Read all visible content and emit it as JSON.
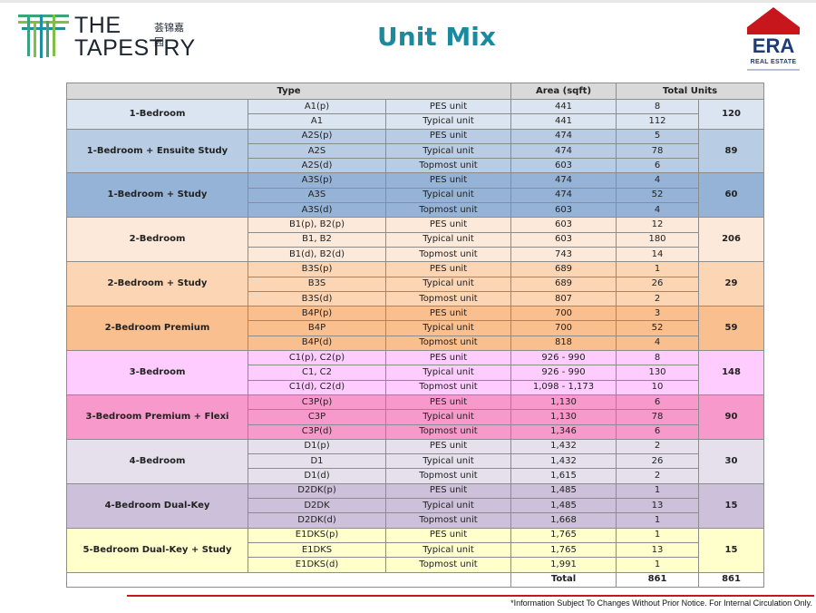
{
  "brand": {
    "line1": "THE",
    "line2": "TAPESTRY",
    "chinese": "荟锦嘉园"
  },
  "title": "Unit Mix",
  "era": {
    "name": "ERA",
    "sub": "REAL ESTATE",
    "accent": "#c8161d",
    "navy": "#1d3c78"
  },
  "table": {
    "headers": {
      "type": "Type",
      "area": "Area (sqft)",
      "units": "Total Units"
    },
    "groups": [
      {
        "name": "1-Bedroom",
        "total": "120",
        "color": "#dbe5f1",
        "rows": [
          {
            "code": "A1(p)",
            "kind": "PES unit",
            "area": "441",
            "units": "8"
          },
          {
            "code": "A1",
            "kind": "Typical unit",
            "area": "441",
            "units": "112"
          }
        ]
      },
      {
        "name": "1-Bedroom + Ensuite Study",
        "total": "89",
        "color": "#b8cce4",
        "rows": [
          {
            "code": "A2S(p)",
            "kind": "PES unit",
            "area": "474",
            "units": "5"
          },
          {
            "code": "A2S",
            "kind": "Typical unit",
            "area": "474",
            "units": "78"
          },
          {
            "code": "A2S(d)",
            "kind": "Topmost unit",
            "area": "603",
            "units": "6"
          }
        ]
      },
      {
        "name": "1-Bedroom + Study",
        "total": "60",
        "color": "#95b3d7",
        "rows": [
          {
            "code": "A3S(p)",
            "kind": "PES unit",
            "area": "474",
            "units": "4"
          },
          {
            "code": "A3S",
            "kind": "Typical unit",
            "area": "474",
            "units": "52"
          },
          {
            "code": "A3S(d)",
            "kind": "Topmost unit",
            "area": "603",
            "units": "4"
          }
        ]
      },
      {
        "name": "2-Bedroom",
        "total": "206",
        "color": "#fde9d9",
        "rows": [
          {
            "code": "B1(p), B2(p)",
            "kind": "PES unit",
            "area": "603",
            "units": "12"
          },
          {
            "code": "B1, B2",
            "kind": "Typical unit",
            "area": "603",
            "units": "180"
          },
          {
            "code": "B1(d), B2(d)",
            "kind": "Topmost unit",
            "area": "743",
            "units": "14"
          }
        ]
      },
      {
        "name": "2-Bedroom + Study",
        "total": "29",
        "color": "#fcd5b4",
        "rows": [
          {
            "code": "B3S(p)",
            "kind": "PES unit",
            "area": "689",
            "units": "1"
          },
          {
            "code": "B3S",
            "kind": "Typical unit",
            "area": "689",
            "units": "26"
          },
          {
            "code": "B3S(d)",
            "kind": "Topmost unit",
            "area": "807",
            "units": "2"
          }
        ]
      },
      {
        "name": "2-Bedroom Premium",
        "total": "59",
        "color": "#fabf8f",
        "rows": [
          {
            "code": "B4P(p)",
            "kind": "PES unit",
            "area": "700",
            "units": "3"
          },
          {
            "code": "B4P",
            "kind": "Typical unit",
            "area": "700",
            "units": "52"
          },
          {
            "code": "B4P(d)",
            "kind": "Topmost unit",
            "area": "818",
            "units": "4"
          }
        ]
      },
      {
        "name": "3-Bedroom",
        "total": "148",
        "color": "#ffccff",
        "rows": [
          {
            "code": "C1(p), C2(p)",
            "kind": "PES unit",
            "area": "926 - 990",
            "units": "8"
          },
          {
            "code": "C1, C2",
            "kind": "Typical unit",
            "area": "926 - 990",
            "units": "130"
          },
          {
            "code": "C1(d), C2(d)",
            "kind": "Topmost unit",
            "area": "1,098 - 1,173",
            "units": "10"
          }
        ]
      },
      {
        "name": "3-Bedroom Premium + Flexi",
        "total": "90",
        "color": "#f79acb",
        "rows": [
          {
            "code": "C3P(p)",
            "kind": "PES unit",
            "area": "1,130",
            "units": "6"
          },
          {
            "code": "C3P",
            "kind": "Typical unit",
            "area": "1,130",
            "units": "78"
          },
          {
            "code": "C3P(d)",
            "kind": "Topmost unit",
            "area": "1,346",
            "units": "6"
          }
        ]
      },
      {
        "name": "4-Bedroom",
        "total": "30",
        "color": "#e6e0ec",
        "rows": [
          {
            "code": "D1(p)",
            "kind": "PES unit",
            "area": "1,432",
            "units": "2"
          },
          {
            "code": "D1",
            "kind": "Typical unit",
            "area": "1,432",
            "units": "26"
          },
          {
            "code": "D1(d)",
            "kind": "Topmost unit",
            "area": "1,615",
            "units": "2"
          }
        ]
      },
      {
        "name": "4-Bedroom Dual-Key",
        "total": "15",
        "color": "#ccc0da",
        "rows": [
          {
            "code": "D2DK(p)",
            "kind": "PES unit",
            "area": "1,485",
            "units": "1"
          },
          {
            "code": "D2DK",
            "kind": "Typical unit",
            "area": "1,485",
            "units": "13"
          },
          {
            "code": "D2DK(d)",
            "kind": "Topmost unit",
            "area": "1,668",
            "units": "1"
          }
        ]
      },
      {
        "name": "5-Bedroom Dual-Key + Study",
        "total": "15",
        "color": "#ffffcc",
        "rows": [
          {
            "code": "E1DKS(p)",
            "kind": "PES unit",
            "area": "1,765",
            "units": "1"
          },
          {
            "code": "E1DKS",
            "kind": "Typical unit",
            "area": "1,765",
            "units": "13"
          },
          {
            "code": "E1DKS(d)",
            "kind": "Topmost unit",
            "area": "1,991",
            "units": "1"
          }
        ]
      }
    ],
    "total": {
      "label": "Total",
      "units": "861",
      "overall": "861"
    }
  },
  "footnote": "*Information Subject To Changes Without Prior Notice. For Internal Circulation Only."
}
